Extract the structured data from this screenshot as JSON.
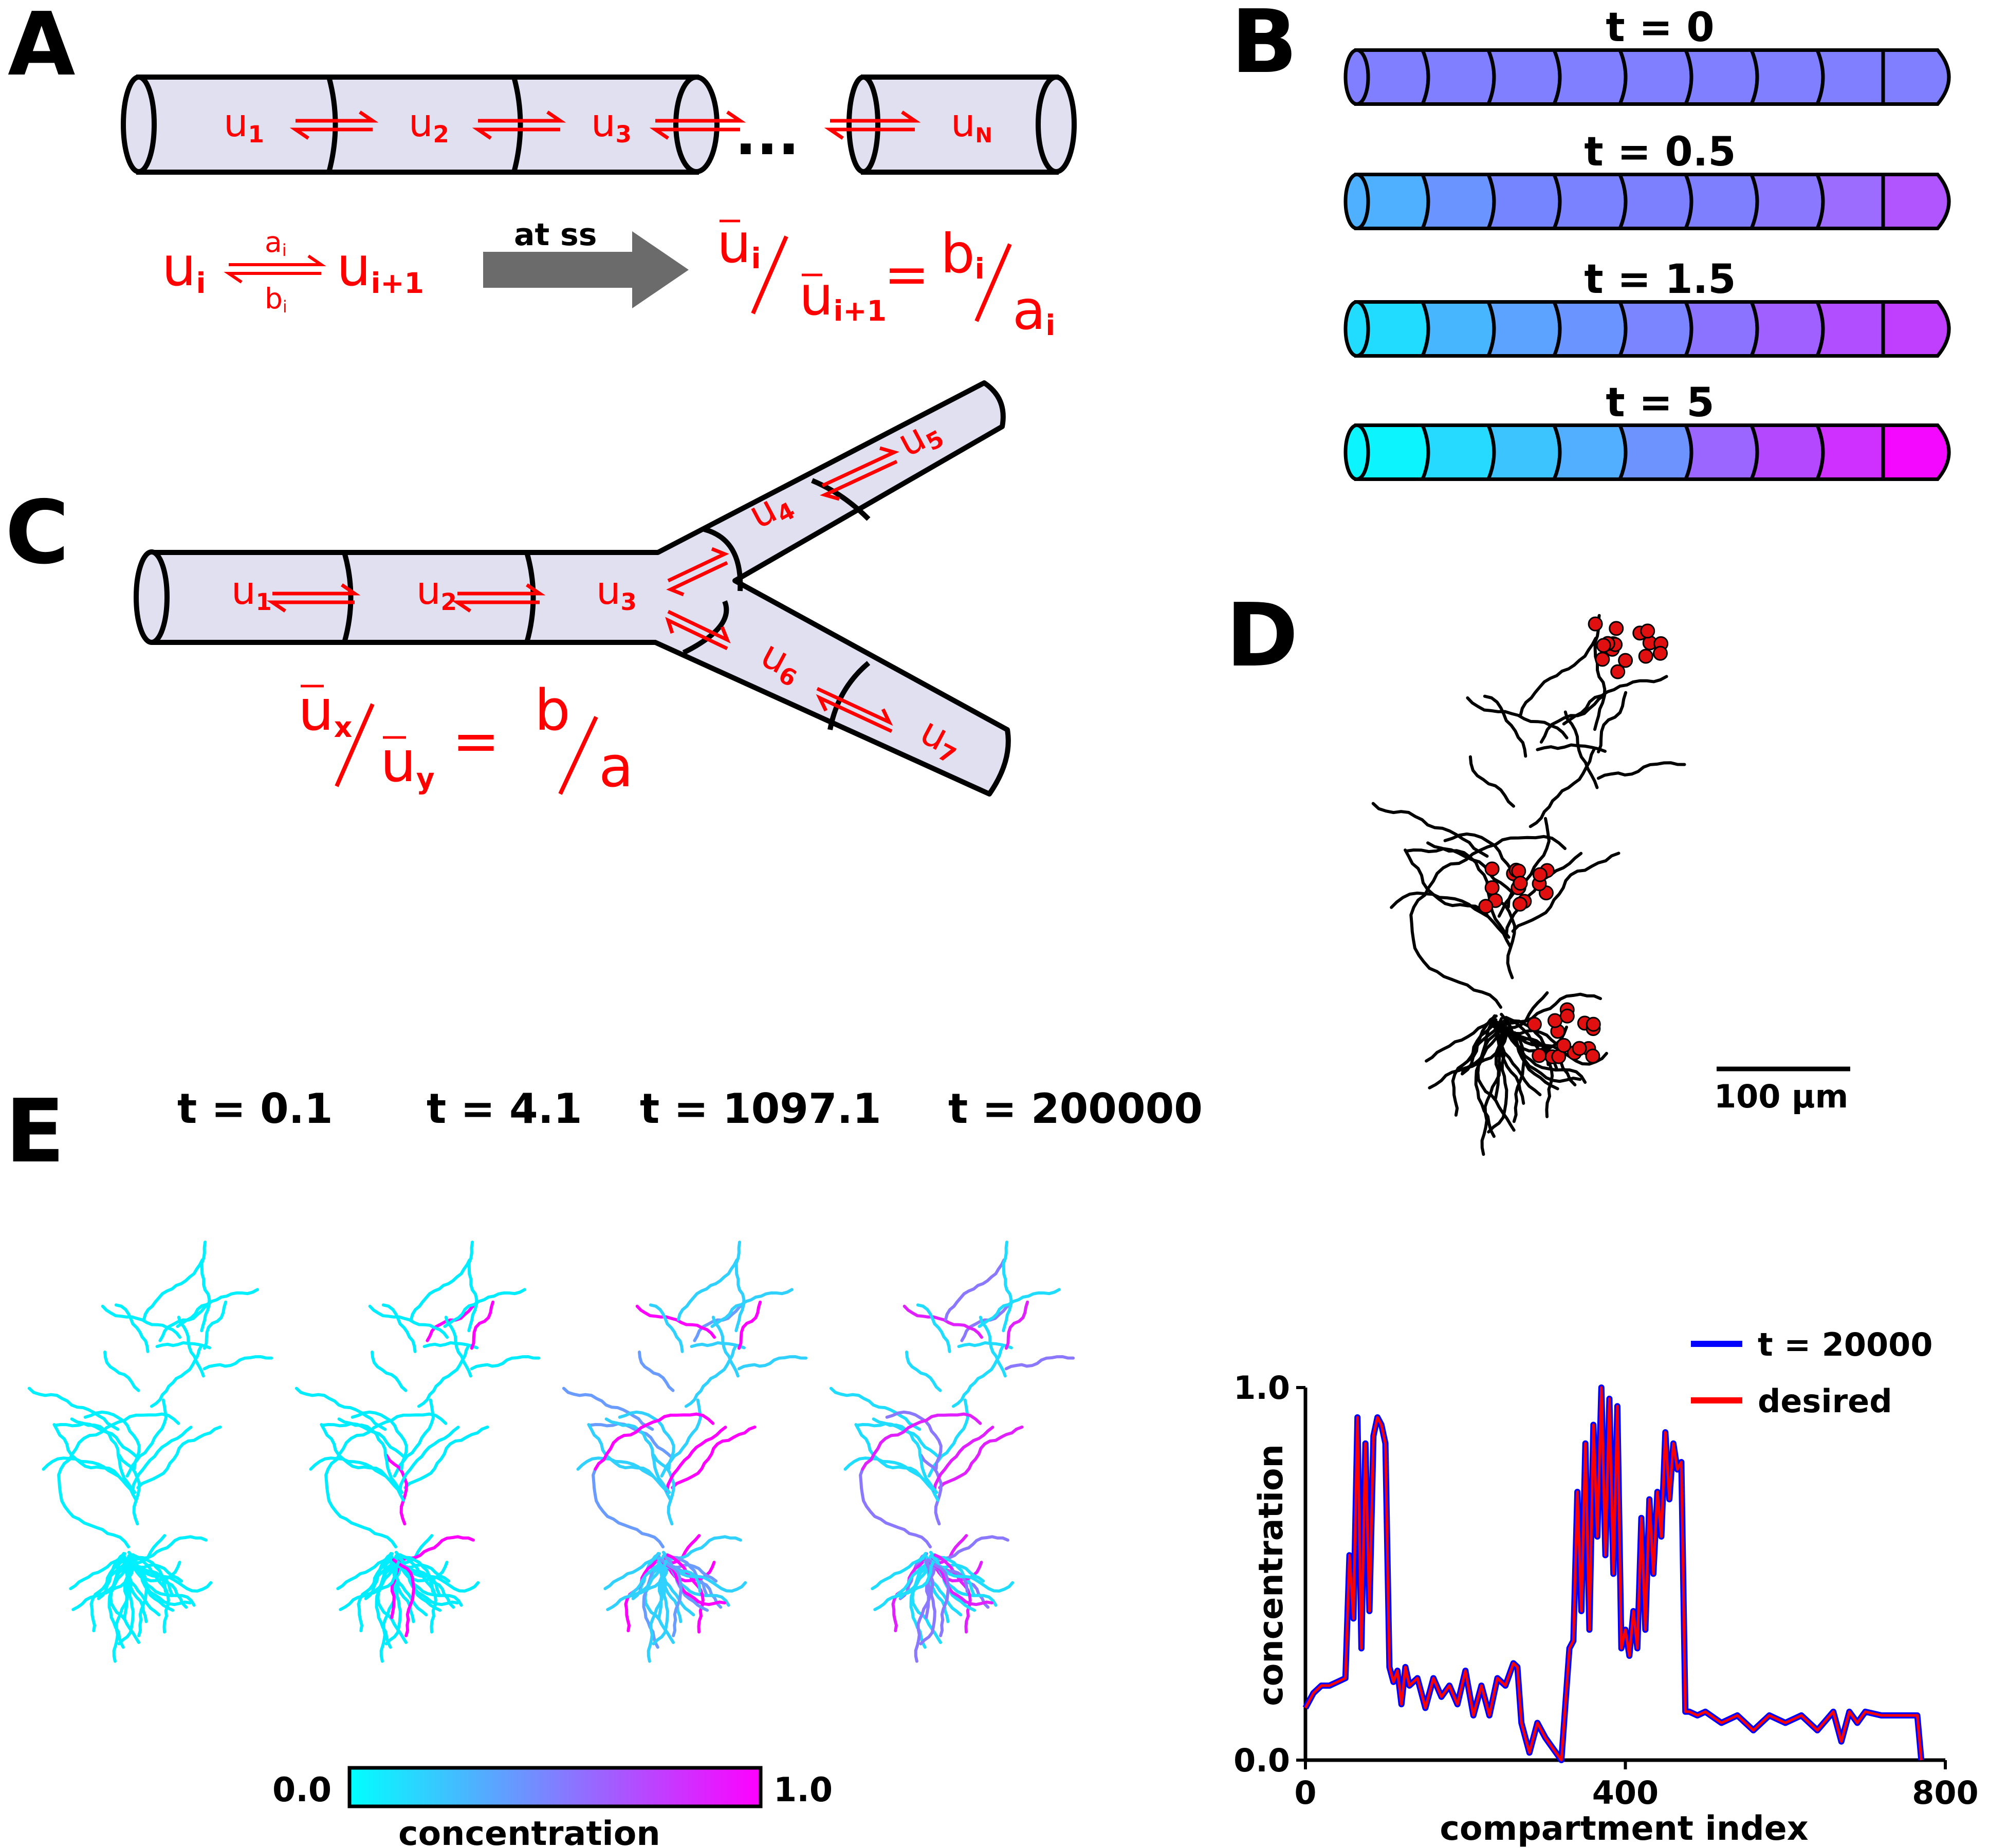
{
  "panels": {
    "a": "A",
    "b": "B",
    "c": "C",
    "d": "D",
    "e": "E"
  },
  "panel_a": {
    "compartments": [
      "u",
      "u",
      "u",
      "u"
    ],
    "subscripts": [
      "1",
      "2",
      "3",
      "N"
    ],
    "ellipsis": "...",
    "reaction_left": "u",
    "reaction_left_sub": "i",
    "reaction_right": "u",
    "reaction_right_sub": "i+1",
    "rate_forward": "a",
    "rate_forward_sub": "i",
    "rate_backward": "b",
    "rate_backward_sub": "i",
    "arrow_label": "at ss",
    "ratio_num": "u",
    "ratio_num_sub": "i",
    "ratio_den": "u",
    "ratio_den_sub": "i+1",
    "equals": "=",
    "ratio_b": "b",
    "ratio_b_sub": "i",
    "ratio_a": "a",
    "ratio_a_sub": "i"
  },
  "panel_b": {
    "rows": [
      {
        "time": "t = 0",
        "colors": [
          "#7f7fff",
          "#7f7fff",
          "#7f7fff",
          "#7f7fff",
          "#7f7fff",
          "#7f7fff",
          "#7f7fff",
          "#7f7fff",
          "#7f7fff"
        ]
      },
      {
        "time": "t = 0.5",
        "colors": [
          "#4fb0ff",
          "#6a94ff",
          "#7585ff",
          "#7a82ff",
          "#7c80ff",
          "#7e7fff",
          "#8a78ff",
          "#9b6cff",
          "#b055ff"
        ]
      },
      {
        "time": "t = 1.5",
        "colors": [
          "#22dcff",
          "#48b6ff",
          "#5ba3ff",
          "#6a94ff",
          "#7a85ff",
          "#8c73ff",
          "#9f60ff",
          "#b14eff",
          "#c03fff"
        ]
      },
      {
        "time": "t = 5",
        "colors": [
          "#0cf5ff",
          "#25d9ff",
          "#3bc4ff",
          "#52aeff",
          "#6c93ff",
          "#9a66ff",
          "#b348ff",
          "#cf30ff",
          "#f508ff"
        ]
      }
    ]
  },
  "panel_c": {
    "subscripts": [
      "1",
      "2",
      "3",
      "4",
      "5",
      "6",
      "7"
    ],
    "var": "u",
    "ratio_num_sub": "x",
    "ratio_den_sub": "y",
    "equals": "=",
    "ratio_b": "b",
    "ratio_a": "a"
  },
  "panel_d": {
    "scale_label": "100 μm"
  },
  "panel_e": {
    "times": [
      "t = 0.1",
      "t = 4.1",
      "t = 1097.1",
      "t = 200000"
    ],
    "colorbar_min": "0.0",
    "colorbar_max": "1.0",
    "colorbar_label": "concentration",
    "colormap": [
      "#00ffff",
      "#ff00ff"
    ]
  },
  "colors": {
    "reaction_red": "#ff0000",
    "compartment_fill": "#e0e0f0",
    "arrow_gray": "#6b6b6b"
  },
  "chart_data": {
    "type": "line",
    "xlabel": "compartment index",
    "ylabel": "concentration",
    "xlim": [
      0,
      800
    ],
    "ylim": [
      0,
      1.0
    ],
    "xticks": [
      0,
      400,
      800
    ],
    "yticks": [
      0.0,
      1.0
    ],
    "xtick_labels": [
      "0",
      "400",
      "800"
    ],
    "ytick_labels": [
      "0.0",
      "1.0"
    ],
    "legend": "top-right",
    "series": [
      {
        "name": "t = 20000",
        "color": "#0000ff"
      },
      {
        "name": "desired",
        "color": "#ff0000"
      }
    ],
    "x": [
      0,
      10,
      20,
      30,
      40,
      50,
      55,
      60,
      65,
      70,
      75,
      80,
      85,
      90,
      95,
      100,
      105,
      110,
      115,
      120,
      125,
      130,
      140,
      150,
      160,
      170,
      180,
      190,
      200,
      210,
      220,
      230,
      240,
      250,
      260,
      265,
      270,
      280,
      290,
      300,
      310,
      320,
      330,
      335,
      340,
      345,
      350,
      355,
      360,
      365,
      370,
      375,
      380,
      385,
      390,
      395,
      400,
      405,
      410,
      415,
      420,
      425,
      430,
      435,
      440,
      445,
      450,
      455,
      460,
      465,
      470,
      475,
      480,
      490,
      500,
      520,
      540,
      560,
      580,
      600,
      620,
      640,
      660,
      670,
      680,
      690,
      700,
      720,
      740,
      760,
      765,
      770
    ],
    "values": [
      0.14,
      0.18,
      0.2,
      0.2,
      0.21,
      0.22,
      0.55,
      0.38,
      0.92,
      0.3,
      0.85,
      0.4,
      0.87,
      0.92,
      0.9,
      0.85,
      0.25,
      0.21,
      0.24,
      0.15,
      0.25,
      0.2,
      0.22,
      0.14,
      0.22,
      0.17,
      0.2,
      0.15,
      0.24,
      0.12,
      0.2,
      0.12,
      0.22,
      0.2,
      0.26,
      0.25,
      0.1,
      0.02,
      0.1,
      0.06,
      0.03,
      0.0,
      0.3,
      0.32,
      0.72,
      0.4,
      0.85,
      0.35,
      0.9,
      0.6,
      1.0,
      0.55,
      0.97,
      0.5,
      0.95,
      0.3,
      0.35,
      0.28,
      0.4,
      0.3,
      0.65,
      0.35,
      0.7,
      0.5,
      0.72,
      0.6,
      0.88,
      0.7,
      0.85,
      0.78,
      0.8,
      0.13,
      0.13,
      0.12,
      0.13,
      0.1,
      0.12,
      0.08,
      0.12,
      0.1,
      0.12,
      0.08,
      0.13,
      0.05,
      0.13,
      0.1,
      0.13,
      0.12,
      0.12,
      0.12,
      0.12,
      0.0
    ]
  }
}
